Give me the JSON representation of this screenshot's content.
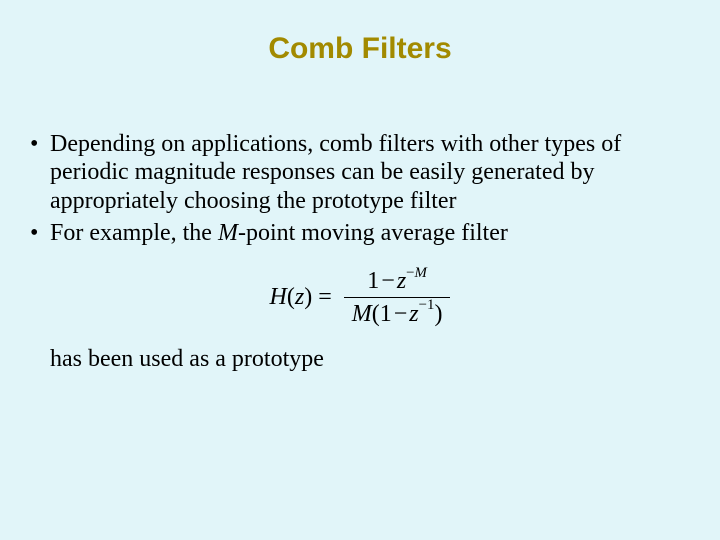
{
  "colors": {
    "background": "#e1f5f9",
    "title": "#a28a00",
    "body_text": "#000000"
  },
  "typography": {
    "title_font": "Arial",
    "title_size_pt": 30,
    "title_weight": "bold",
    "body_font": "Times New Roman",
    "body_size_pt": 24
  },
  "title": "Comb Filters",
  "bullets": [
    {
      "text": "Depending on applications, comb filters with other types of periodic magnitude responses can be easily generated by appropriately choosing the prototype filter"
    },
    {
      "prefix": "For example, the ",
      "italic": "M",
      "suffix": "-point moving average filter"
    }
  ],
  "formula": {
    "lhs_func": "H",
    "lhs_arg": "z",
    "eq": "=",
    "num_lead": "1",
    "num_minus": "−",
    "num_var": "z",
    "num_exp_minus": "−",
    "num_exp_var": "M",
    "den_lead": "M",
    "den_open": "(1",
    "den_minus": "−",
    "den_var": "z",
    "den_exp": "−1",
    "den_close": ")"
  },
  "closing": "has been used as a prototype"
}
